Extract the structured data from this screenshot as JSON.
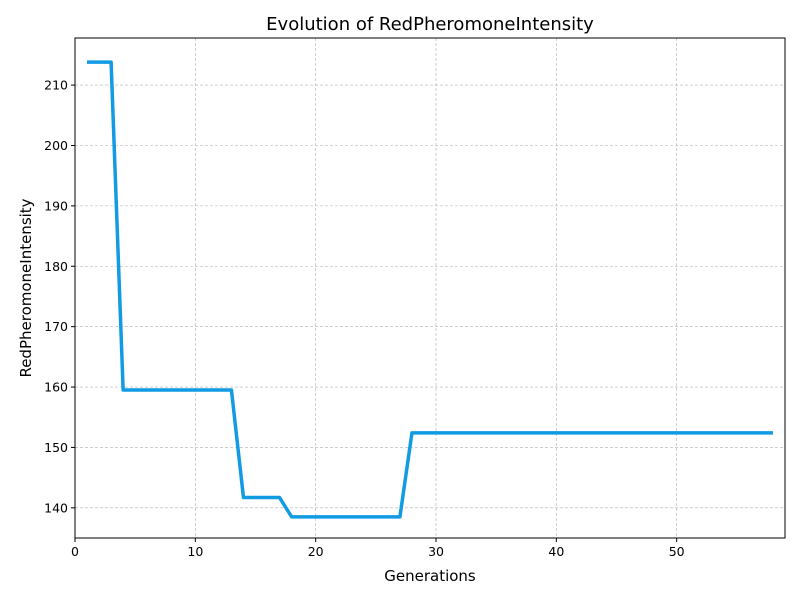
{
  "chart_data": {
    "type": "line",
    "title": "Evolution of RedPheromoneIntensity",
    "xlabel": "Generations",
    "ylabel": "RedPheromoneIntensity",
    "xlim": [
      0,
      59
    ],
    "ylim": [
      135,
      217.8
    ],
    "xticks": [
      0,
      10,
      20,
      30,
      40,
      50
    ],
    "yticks": [
      140,
      150,
      160,
      170,
      180,
      190,
      200,
      210
    ],
    "grid": true,
    "series": [
      {
        "color": "#119be3",
        "x": [
          1,
          2,
          3,
          4,
          5,
          6,
          7,
          8,
          9,
          10,
          11,
          12,
          13,
          14,
          15,
          16,
          17,
          18,
          19,
          20,
          21,
          22,
          23,
          24,
          25,
          26,
          27,
          28,
          29,
          30,
          31,
          32,
          33,
          34,
          35,
          36,
          37,
          38,
          39,
          40,
          41,
          42,
          43,
          44,
          45,
          46,
          47,
          48,
          49,
          50,
          51,
          52,
          53,
          54,
          55,
          56,
          57,
          58
        ],
        "y": [
          213.8,
          213.8,
          213.8,
          159.5,
          159.5,
          159.5,
          159.5,
          159.5,
          159.5,
          159.5,
          159.5,
          159.5,
          159.5,
          141.7,
          141.7,
          141.7,
          141.7,
          138.5,
          138.5,
          138.5,
          138.5,
          138.5,
          138.5,
          138.5,
          138.5,
          138.5,
          138.5,
          152.4,
          152.4,
          152.4,
          152.4,
          152.4,
          152.4,
          152.4,
          152.4,
          152.4,
          152.4,
          152.4,
          152.4,
          152.4,
          152.4,
          152.4,
          152.4,
          152.4,
          152.4,
          152.4,
          152.4,
          152.4,
          152.4,
          152.4,
          152.4,
          152.4,
          152.4,
          152.4,
          152.4,
          152.4,
          152.4,
          152.4
        ]
      }
    ]
  }
}
